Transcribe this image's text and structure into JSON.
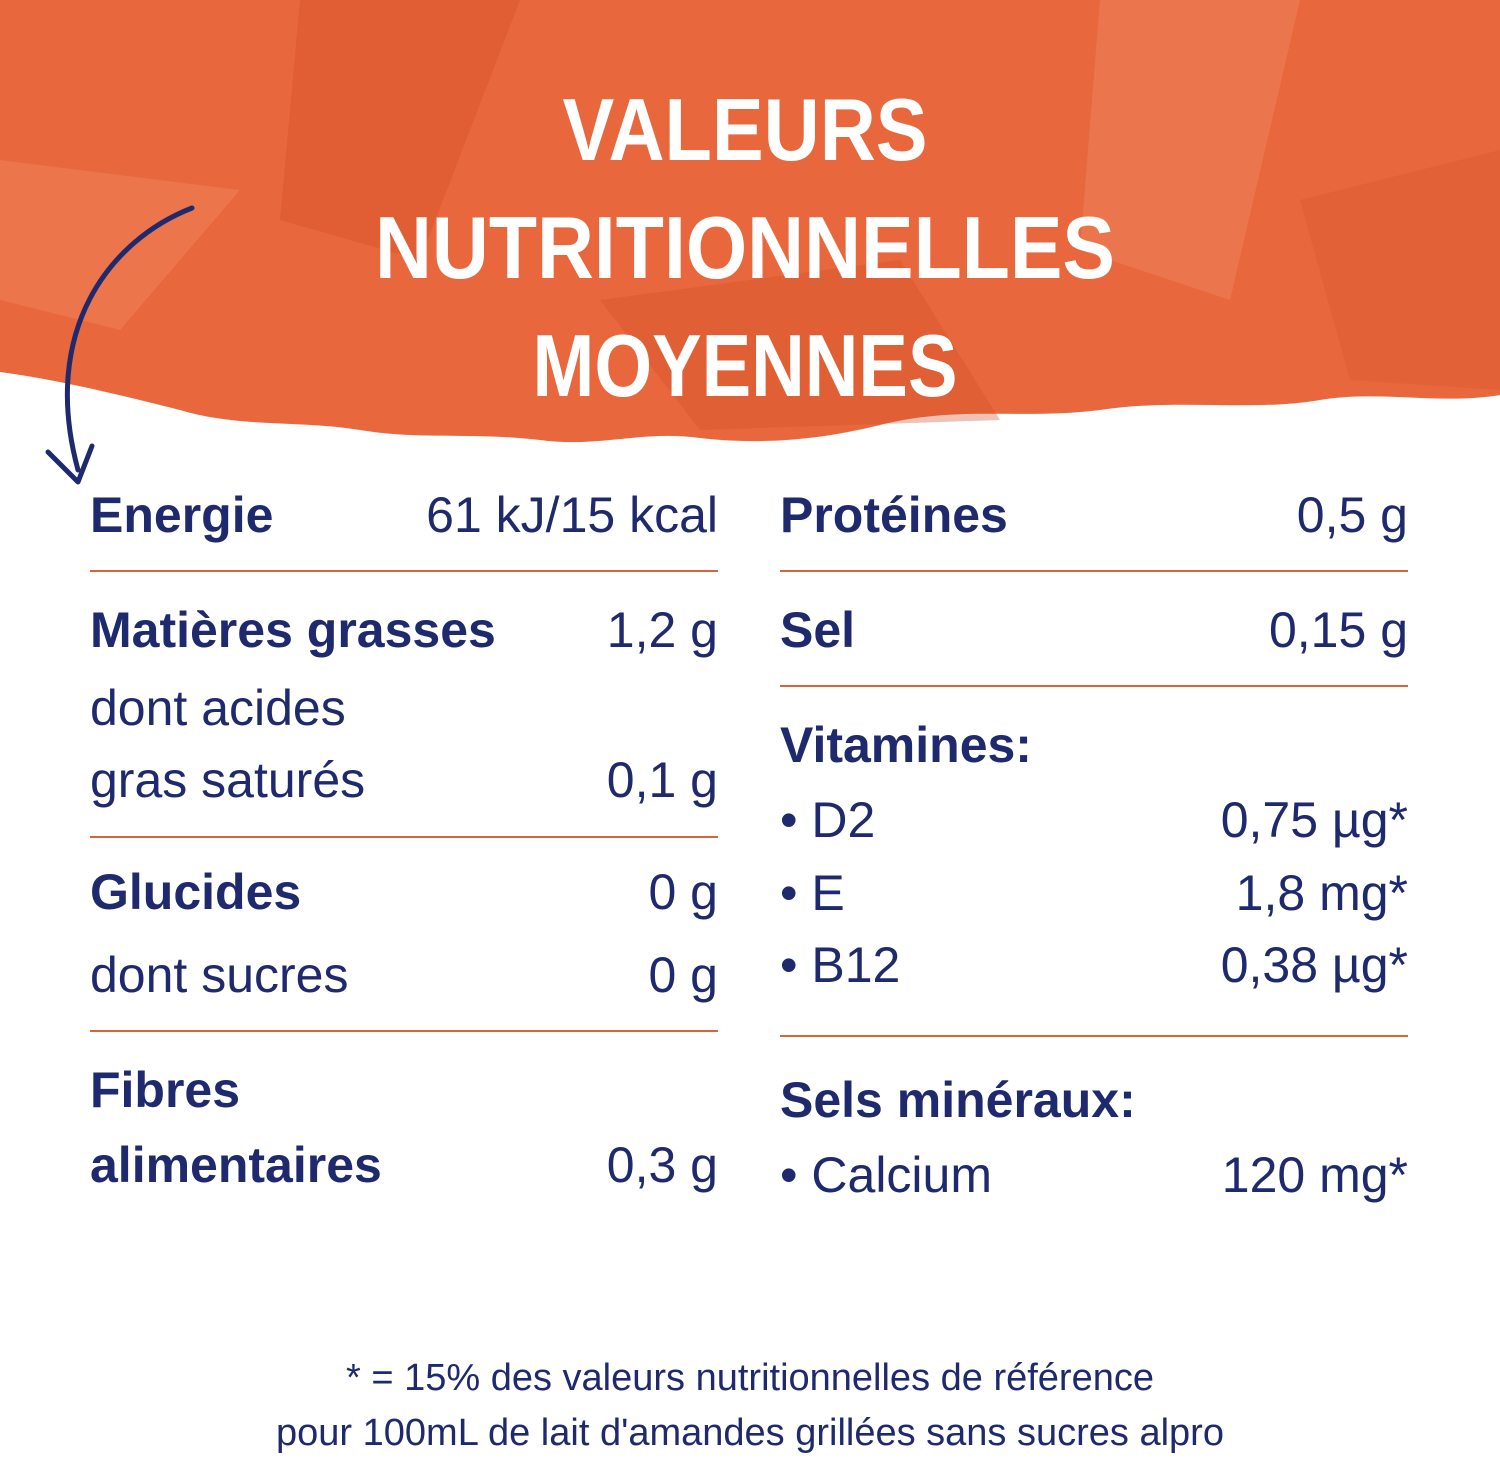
{
  "title": [
    "VALEURS",
    "NUTRITIONNELLES",
    "MOYENNES"
  ],
  "left_column": [
    {
      "label": "Energie",
      "value": "61 kJ/15 kcal"
    },
    {
      "label": "Matières grasses",
      "value": "1,2 g"
    },
    {
      "label": [
        "dont acides",
        "gras saturés"
      ],
      "value": "0,1 g"
    },
    {
      "label": "Glucides",
      "value": "0 g"
    },
    {
      "label": "dont sucres",
      "value": "0 g"
    },
    {
      "label": [
        "Fibres",
        "alimentaires"
      ],
      "value": "0,3 g"
    }
  ],
  "right_column": [
    {
      "label": "Protéines",
      "value": "0,5 g"
    },
    {
      "label": "Sel",
      "value": "0,15 g"
    },
    {
      "heading": "Vitamines:"
    },
    {
      "label": "• D2",
      "value": "0,75 µg*"
    },
    {
      "label": "• E",
      "value": "1,8 mg*"
    },
    {
      "label": "• B12",
      "value": "0,38 µg*"
    },
    {
      "heading": "Sels minéraux:"
    },
    {
      "label": "• Calcium",
      "value": "120 mg*"
    }
  ],
  "footnote": [
    "* = 15% des valeurs nutritionnelles de référence",
    "pour 100mL de lait d'amandes grillées sans sucres alpro"
  ]
}
